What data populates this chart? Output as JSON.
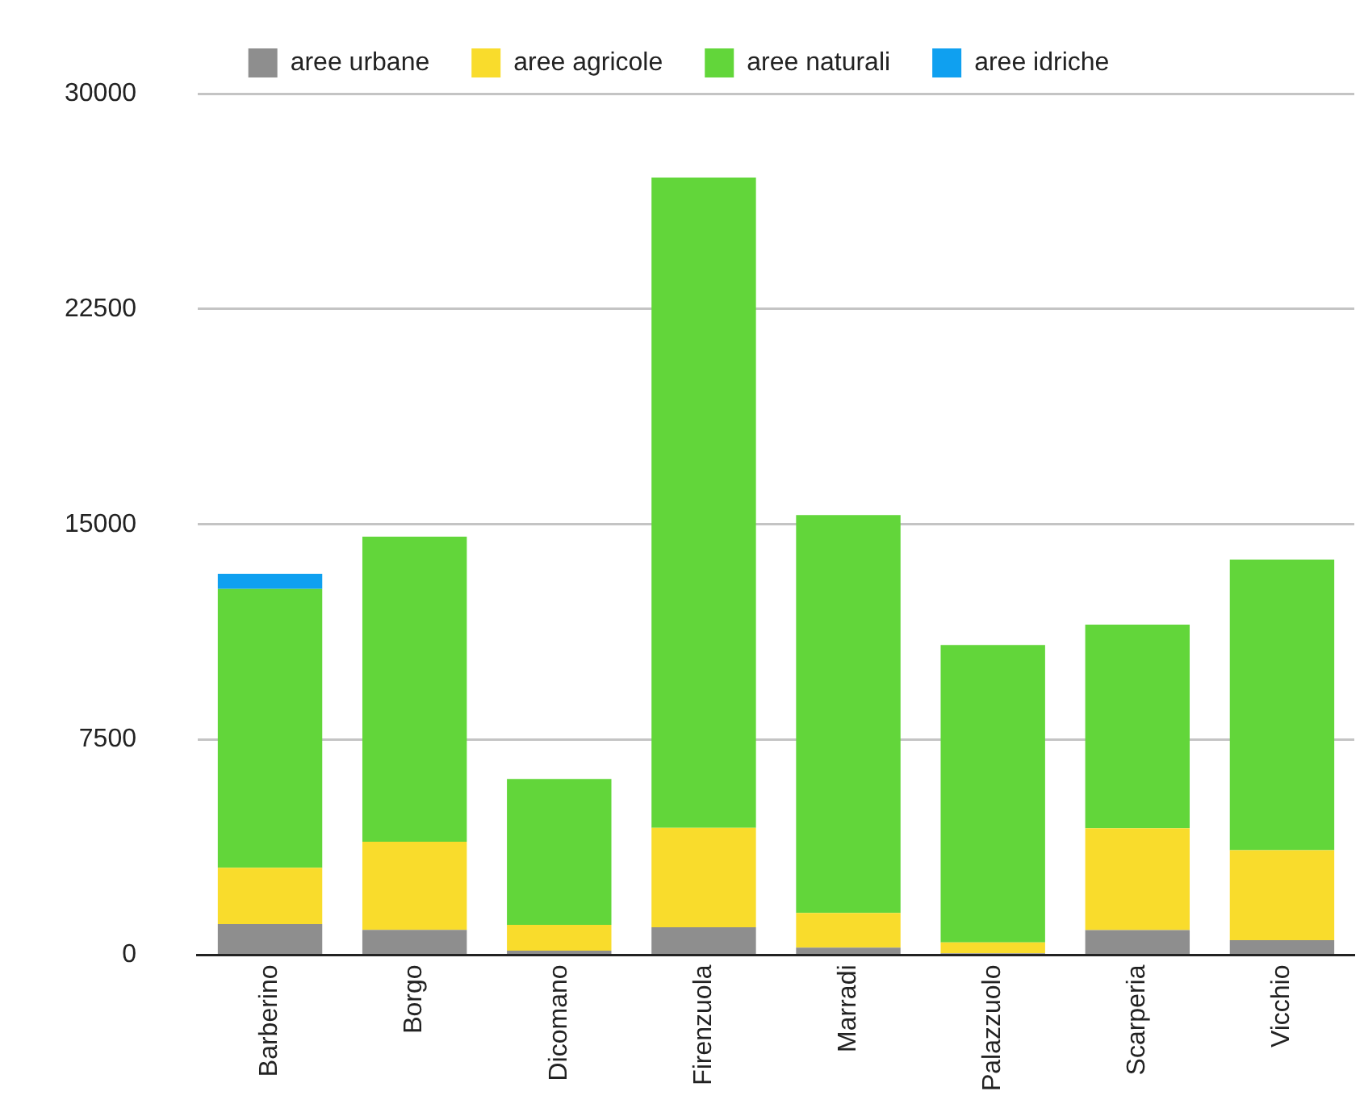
{
  "chart_data": {
    "type": "bar",
    "stacked": true,
    "categories": [
      "Barberino",
      "Borgo",
      "Dicomano",
      "Firenzuola",
      "Marradi",
      "Palazzuolo",
      "Scarperia",
      "Vicchio"
    ],
    "series": [
      {
        "name": "aree urbane",
        "color": "#8e8e8e",
        "values": [
          1080,
          880,
          150,
          970,
          260,
          60,
          870,
          520
        ]
      },
      {
        "name": "aree agricole",
        "color": "#f9dc2c",
        "values": [
          1960,
          3070,
          900,
          3460,
          1210,
          380,
          3550,
          3130
        ]
      },
      {
        "name": "aree naturali",
        "color": "#62d63a",
        "values": [
          9710,
          10620,
          5080,
          22650,
          13850,
          10360,
          7090,
          10120
        ]
      },
      {
        "name": "aree idriche",
        "color": "#0fa0f0",
        "values": [
          530,
          0,
          0,
          0,
          0,
          0,
          0,
          0
        ]
      }
    ],
    "ylim": [
      0,
      30000
    ],
    "yticks": [
      0,
      7500,
      15000,
      22500,
      30000
    ],
    "grid": "y",
    "legend": "top"
  }
}
